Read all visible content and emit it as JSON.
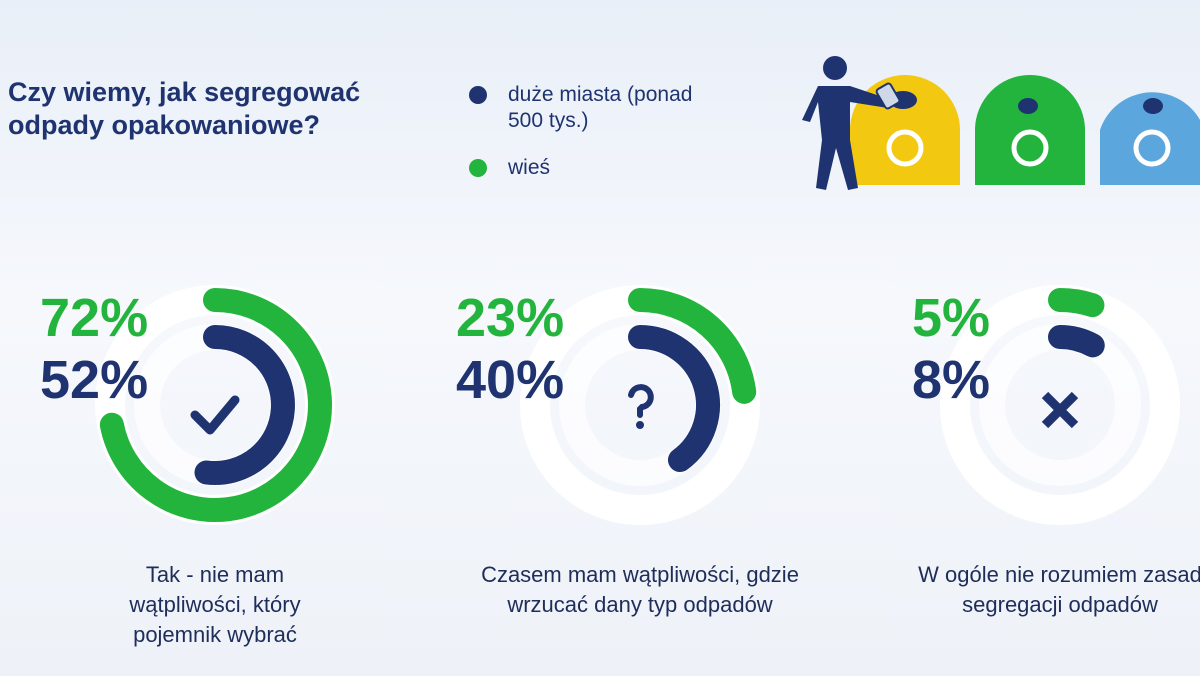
{
  "chart_data": {
    "type": "radial",
    "title": "Czy wiemy, jak segregować odpady opakowaniowe?",
    "categories": [
      "Tak - nie mam wątpliwości, który pojemnik wybrać",
      "Czasem mam wątpliwości, gdzie wrzucać dany typ odpadów",
      "W ogóle nie rozumiem zasad segregacji odpadów"
    ],
    "series": [
      {
        "name": "duże miasta (ponad 500 tys.)",
        "color": "#1e3370",
        "values": [
          52,
          40,
          8
        ],
        "value_labels": [
          "52%",
          "40%",
          "8%"
        ]
      },
      {
        "name": "wieś",
        "color": "#22b43c",
        "values": [
          72,
          23,
          5
        ],
        "value_labels": [
          "72%",
          "23%",
          "5%"
        ]
      }
    ],
    "ylim": [
      0,
      100
    ]
  }
}
